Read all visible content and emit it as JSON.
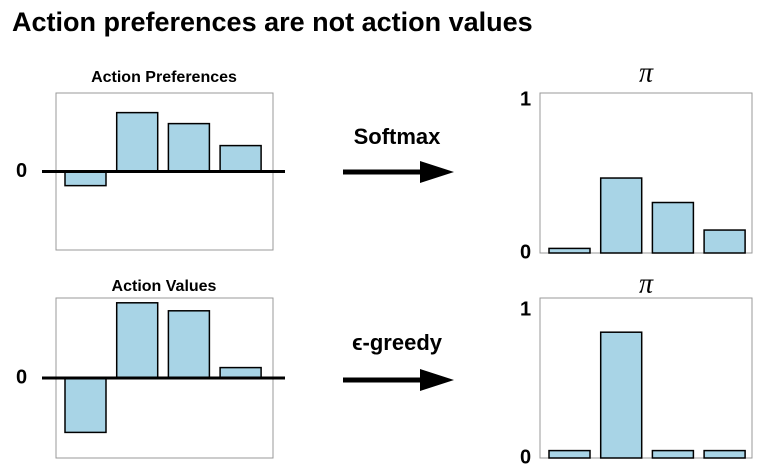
{
  "title": "Action preferences are not action values",
  "arrows": [
    "Softmax",
    "ϵ-greedy"
  ],
  "chart_data": [
    {
      "type": "bar",
      "title": "Action Preferences",
      "values": [
        -0.18,
        0.75,
        0.61,
        0.33
      ],
      "color": "#a8d4e6",
      "ylim": [
        -1,
        1
      ],
      "yticks": [
        0
      ]
    },
    {
      "type": "bar",
      "title": "π",
      "values": [
        0.03,
        0.49,
        0.33,
        0.15
      ],
      "color": "#a8d4e6",
      "ylim": [
        0,
        1
      ],
      "yticks": [
        0,
        1
      ]
    },
    {
      "type": "bar",
      "title": "Action Values",
      "values": [
        -0.68,
        0.94,
        0.84,
        0.13
      ],
      "color": "#a8d4e6",
      "ylim": [
        -1,
        1
      ],
      "yticks": [
        0
      ]
    },
    {
      "type": "bar",
      "title": "π",
      "values": [
        0.05,
        0.85,
        0.05,
        0.05
      ],
      "color": "#a8d4e6",
      "ylim": [
        0,
        1
      ],
      "yticks": [
        0,
        1
      ]
    }
  ]
}
